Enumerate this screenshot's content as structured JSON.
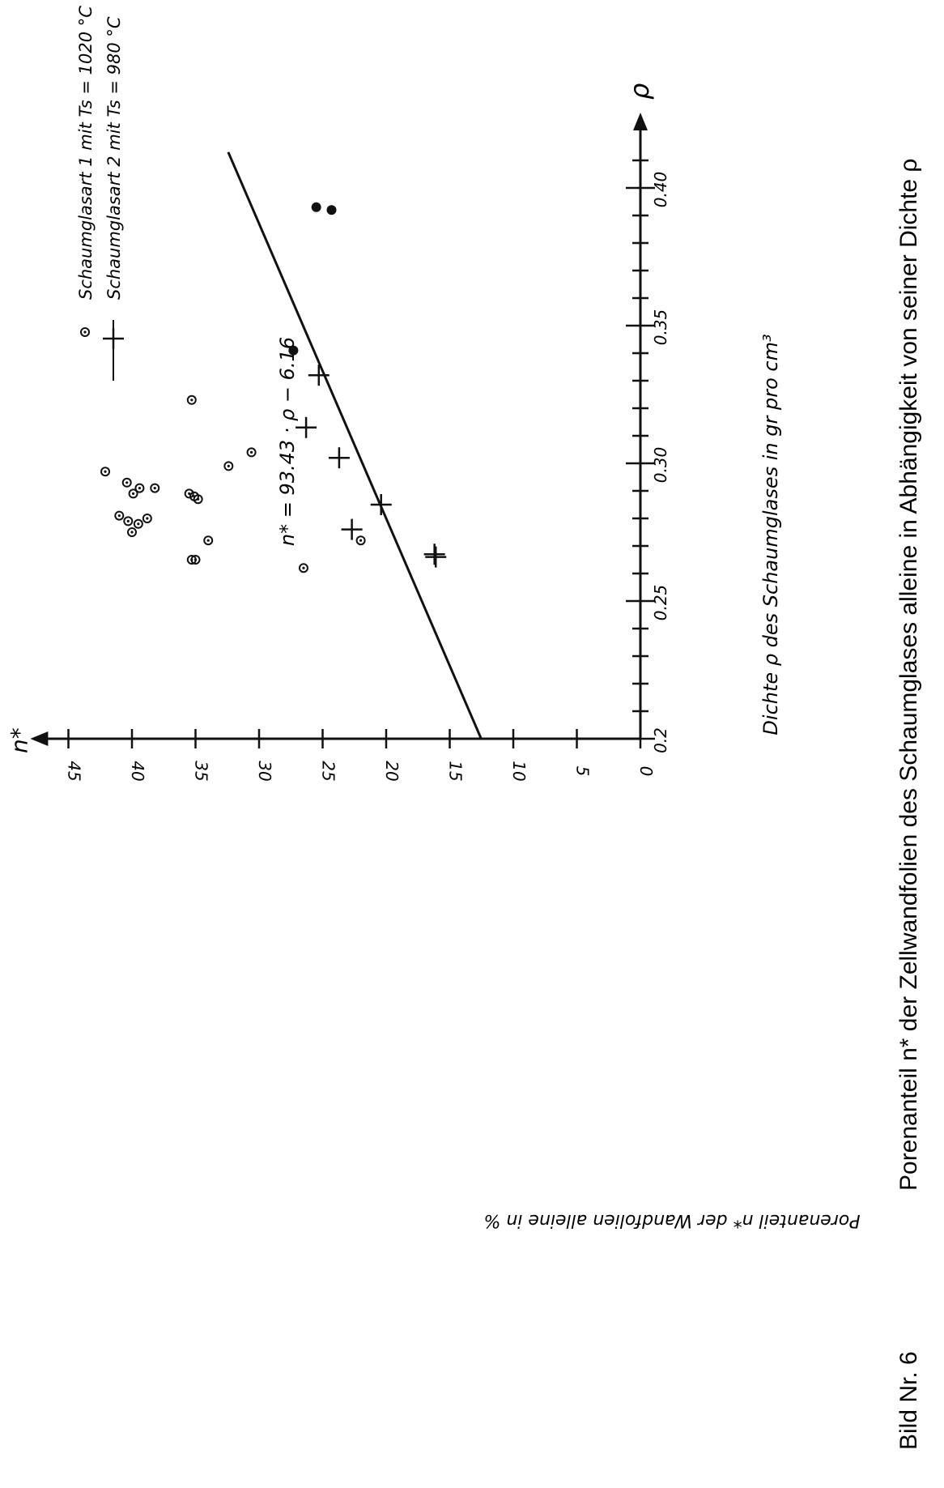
{
  "caption": {
    "figure_label": "Bild Nr. 6",
    "title": "Porenanteil n* der Zellwandfolien des Schaumglases alleine in Abhängigkeit von seiner Dichte ρ"
  },
  "chart_data": {
    "type": "scatter",
    "orientation_note": "rotated",
    "xlabel": "Dichte ρ des Schaumglases in gr pro cm³",
    "ylabel": "Porenanteil n* der Wandfolien alleine in %",
    "x_axis_symbol": "ρ",
    "y_axis_symbol": "n*",
    "xlim": [
      0.2,
      0.42
    ],
    "ylim": [
      0,
      48
    ],
    "x_ticks": [
      0.2,
      0.21,
      0.22,
      0.23,
      0.24,
      0.25,
      0.26,
      0.27,
      0.28,
      0.29,
      0.3,
      0.31,
      0.32,
      0.33,
      0.34,
      0.35,
      0.36,
      0.37,
      0.38,
      0.39,
      0.4,
      0.41
    ],
    "x_tick_labels": [
      {
        "value": 0.2,
        "label": "0.2"
      },
      {
        "value": 0.25,
        "label": "0.25"
      },
      {
        "value": 0.3,
        "label": "0.30"
      },
      {
        "value": 0.35,
        "label": "0.35"
      },
      {
        "value": 0.4,
        "label": "0.40"
      }
    ],
    "y_ticks": [
      0,
      5,
      10,
      15,
      20,
      25,
      30,
      35,
      40,
      45
    ],
    "y_tick_labels": [
      "0",
      "5",
      "10",
      "15",
      "20",
      "25",
      "30",
      "35",
      "40",
      "45"
    ],
    "grid": false,
    "legend_position": "top-right",
    "series": [
      {
        "name": "Schaumglasart 1 mit Ts = 1020 °C",
        "marker": "circle-dot",
        "points": [
          {
            "x": 0.262,
            "y": 26.5
          },
          {
            "x": 0.265,
            "y": 35.0
          },
          {
            "x": 0.265,
            "y": 35.3
          },
          {
            "x": 0.272,
            "y": 22.0
          },
          {
            "x": 0.272,
            "y": 34.0
          },
          {
            "x": 0.275,
            "y": 40.0
          },
          {
            "x": 0.278,
            "y": 39.5
          },
          {
            "x": 0.279,
            "y": 40.3
          },
          {
            "x": 0.28,
            "y": 38.8
          },
          {
            "x": 0.281,
            "y": 41.0
          },
          {
            "x": 0.287,
            "y": 34.8
          },
          {
            "x": 0.288,
            "y": 35.1
          },
          {
            "x": 0.289,
            "y": 35.5
          },
          {
            "x": 0.289,
            "y": 39.9
          },
          {
            "x": 0.291,
            "y": 39.4
          },
          {
            "x": 0.291,
            "y": 38.2
          },
          {
            "x": 0.293,
            "y": 40.4
          },
          {
            "x": 0.297,
            "y": 42.1
          },
          {
            "x": 0.299,
            "y": 32.4
          },
          {
            "x": 0.304,
            "y": 30.6
          },
          {
            "x": 0.323,
            "y": 35.3
          }
        ]
      },
      {
        "name": "Schaumglasart 2 mit Ts = 980 °C",
        "marker": "plus",
        "points": [
          {
            "x": 0.266,
            "y": 16.1
          },
          {
            "x": 0.267,
            "y": 16.2
          },
          {
            "x": 0.276,
            "y": 22.7
          },
          {
            "x": 0.285,
            "y": 20.4
          },
          {
            "x": 0.302,
            "y": 23.7
          },
          {
            "x": 0.313,
            "y": 26.3
          },
          {
            "x": 0.332,
            "y": 25.3
          }
        ]
      },
      {
        "name": "",
        "marker": "filled-circle",
        "points": [
          {
            "x": 0.341,
            "y": 27.3
          },
          {
            "x": 0.392,
            "y": 24.3
          },
          {
            "x": 0.393,
            "y": 25.5
          }
        ]
      }
    ],
    "fit_line": {
      "label": "n* = 93.43 · ρ − 6.16",
      "slope": 93.43,
      "intercept": -6.16,
      "x_range": [
        0.2,
        0.413
      ]
    }
  }
}
